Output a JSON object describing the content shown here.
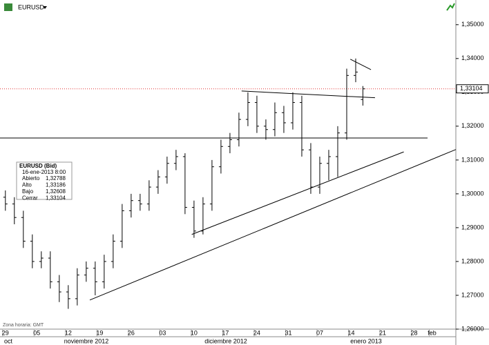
{
  "chart_data": {
    "type": "ohlc",
    "title": "EURUSD",
    "timezone_note": "Zona horaria: GMT",
    "color": "#000000",
    "x": [
      0,
      2,
      4,
      6,
      8,
      10,
      12,
      14,
      16,
      18,
      20,
      22,
      24,
      26,
      28,
      30,
      32,
      34,
      36,
      38,
      40,
      42,
      44,
      46,
      48,
      50,
      52,
      54,
      56,
      58,
      60,
      62,
      64,
      66,
      68,
      70,
      72,
      74,
      76,
      78,
      79.6
    ],
    "open": [
      1.299,
      1.297,
      1.293,
      1.286,
      1.28,
      1.281,
      1.274,
      1.271,
      1.269,
      1.276,
      1.278,
      1.274,
      1.28,
      1.286,
      1.295,
      1.298,
      1.297,
      1.302,
      1.305,
      1.309,
      1.311,
      1.296,
      1.289,
      1.297,
      1.308,
      1.314,
      1.316,
      1.322,
      1.327,
      1.32,
      1.319,
      1.324,
      1.321,
      1.327,
      1.313,
      1.302,
      1.309,
      1.311,
      1.318,
      1.335,
      1.32788
    ],
    "high": [
      1.301,
      1.299,
      1.295,
      1.288,
      1.283,
      1.283,
      1.276,
      1.273,
      1.278,
      1.28,
      1.28,
      1.282,
      1.288,
      1.297,
      1.3,
      1.3,
      1.304,
      1.307,
      1.311,
      1.313,
      1.312,
      1.298,
      1.299,
      1.31,
      1.316,
      1.318,
      1.324,
      1.33,
      1.329,
      1.322,
      1.327,
      1.326,
      1.33,
      1.329,
      1.315,
      1.311,
      1.313,
      1.32,
      1.337,
      1.34,
      1.33186
    ],
    "low": [
      1.295,
      1.291,
      1.284,
      1.278,
      1.278,
      1.272,
      1.268,
      1.266,
      1.267,
      1.274,
      1.27,
      1.272,
      1.278,
      1.284,
      1.293,
      1.295,
      1.295,
      1.3,
      1.303,
      1.307,
      1.294,
      1.287,
      1.288,
      1.295,
      1.306,
      1.312,
      1.314,
      1.32,
      1.318,
      1.316,
      1.317,
      1.318,
      1.319,
      1.311,
      1.3,
      1.3,
      1.304,
      1.305,
      1.316,
      1.333,
      1.32608
    ],
    "close": [
      1.297,
      1.293,
      1.286,
      1.28,
      1.281,
      1.274,
      1.271,
      1.269,
      1.276,
      1.278,
      1.274,
      1.28,
      1.286,
      1.295,
      1.298,
      1.297,
      1.302,
      1.305,
      1.309,
      1.311,
      1.296,
      1.289,
      1.297,
      1.308,
      1.314,
      1.316,
      1.322,
      1.327,
      1.32,
      1.319,
      1.324,
      1.321,
      1.327,
      1.313,
      1.302,
      1.309,
      1.311,
      1.318,
      1.335,
      1.336,
      1.33104
    ],
    "xlim": [
      -1.2,
      100.3
    ],
    "xticks": [
      {
        "value": 0,
        "label": "29"
      },
      {
        "value": 7,
        "label": "05"
      },
      {
        "value": 14,
        "label": "12"
      },
      {
        "value": 21,
        "label": "19"
      },
      {
        "value": 28,
        "label": "26"
      },
      {
        "value": 35,
        "label": "03"
      },
      {
        "value": 42,
        "label": "10"
      },
      {
        "value": 49,
        "label": "17"
      },
      {
        "value": 56,
        "label": "24"
      },
      {
        "value": 63,
        "label": "31"
      },
      {
        "value": 70,
        "label": "07"
      },
      {
        "value": 77,
        "label": "14"
      },
      {
        "value": 84,
        "label": "21"
      },
      {
        "value": 91,
        "label": "28"
      },
      {
        "value": 95,
        "label": "feb"
      }
    ],
    "month_labels": [
      "oct",
      "noviembre 2012",
      "diciembre 2012",
      "enero 2013"
    ],
    "ylim": [
      1.26,
      1.3573
    ],
    "yticks": [
      {
        "value": 1.26,
        "label": "1,26000"
      },
      {
        "value": 1.27,
        "label": "1,27000"
      },
      {
        "value": 1.28,
        "label": "1,28000"
      },
      {
        "value": 1.29,
        "label": "1,29000"
      },
      {
        "value": 1.3,
        "label": "1,30000"
      },
      {
        "value": 1.31,
        "label": "1,31000"
      },
      {
        "value": 1.32,
        "label": "1,32000"
      },
      {
        "value": 1.33,
        "label": "1,33000"
      },
      {
        "value": 1.34,
        "label": "1,34000"
      },
      {
        "value": 1.35,
        "label": "1,35000"
      }
    ],
    "last_price": {
      "value": 1.33104,
      "label": "1,33104"
    },
    "trendlines": [
      {
        "x": [
          -1.2,
          94
        ],
        "y": [
          1.3165,
          1.3165
        ]
      },
      {
        "x": [
          52.6,
          82.3
        ],
        "y": [
          1.3304,
          1.3284
        ]
      },
      {
        "x": [
          76.8,
          81.4
        ],
        "y": [
          1.3398,
          1.3367
        ]
      },
      {
        "x": [
          18.8,
          100.3
        ],
        "y": [
          1.2686,
          1.3131
        ]
      },
      {
        "x": [
          41.5,
          88.7
        ],
        "y": [
          1.288,
          1.3124
        ]
      }
    ],
    "info_box": {
      "title": "EURUSD (Bid)",
      "date": "16-ene-2013 8:00",
      "rows": [
        {
          "label": "Abierto",
          "value": 1.32788,
          "value_label": "1,32788"
        },
        {
          "label": "Alto",
          "value": 1.33186,
          "value_label": "1,33186"
        },
        {
          "label": "Bajo",
          "value": 1.32608,
          "value_label": "1,32608"
        },
        {
          "label": "Cerrar",
          "value": 1.33104,
          "value_label": "1,33104"
        }
      ]
    }
  }
}
